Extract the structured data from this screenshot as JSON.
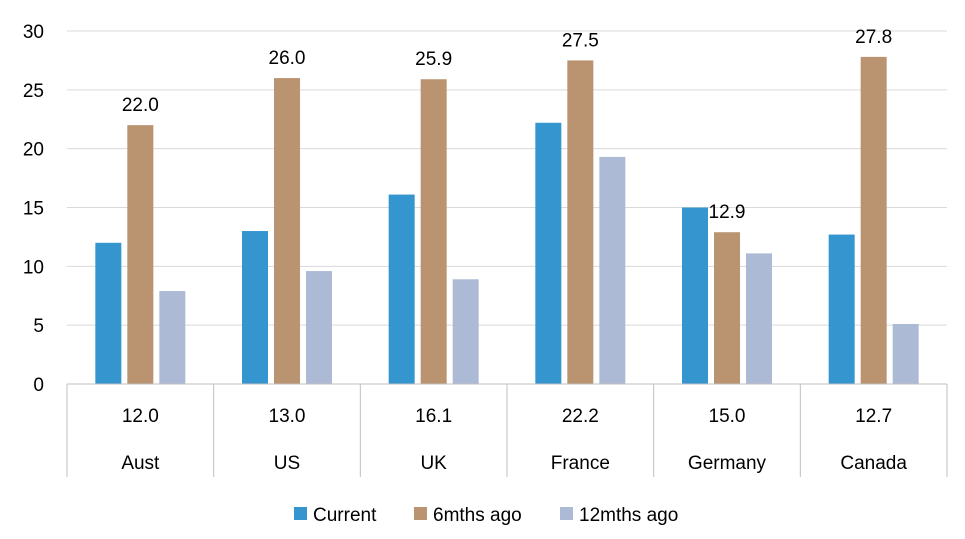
{
  "chart_data": {
    "type": "bar",
    "categories": [
      "Aust",
      "US",
      "UK",
      "France",
      "Germany",
      "Canada"
    ],
    "series": [
      {
        "name": "Current",
        "color": "#3596CF",
        "values": [
          12.0,
          13.0,
          16.1,
          22.2,
          15.0,
          12.7
        ]
      },
      {
        "name": "6mths ago",
        "color": "#BA9370",
        "values": [
          22.0,
          26.0,
          25.9,
          27.5,
          12.9,
          27.8
        ]
      },
      {
        "name": "12mths ago",
        "color": "#ADBAD6",
        "values": [
          7.9,
          9.6,
          8.9,
          19.3,
          11.1,
          5.1
        ]
      }
    ],
    "data_labels": {
      "6mths ago": [
        "22.0",
        "26.0",
        "25.9",
        "27.5",
        "12.9",
        "27.8"
      ]
    },
    "table_row": [
      "12.0",
      "13.0",
      "16.1",
      "22.2",
      "15.0",
      "12.7"
    ],
    "y_ticks": [
      "0",
      "5",
      "10",
      "15",
      "20",
      "25",
      "30"
    ],
    "ylim": [
      0,
      30
    ],
    "grid": true,
    "legend_position": "bottom"
  }
}
